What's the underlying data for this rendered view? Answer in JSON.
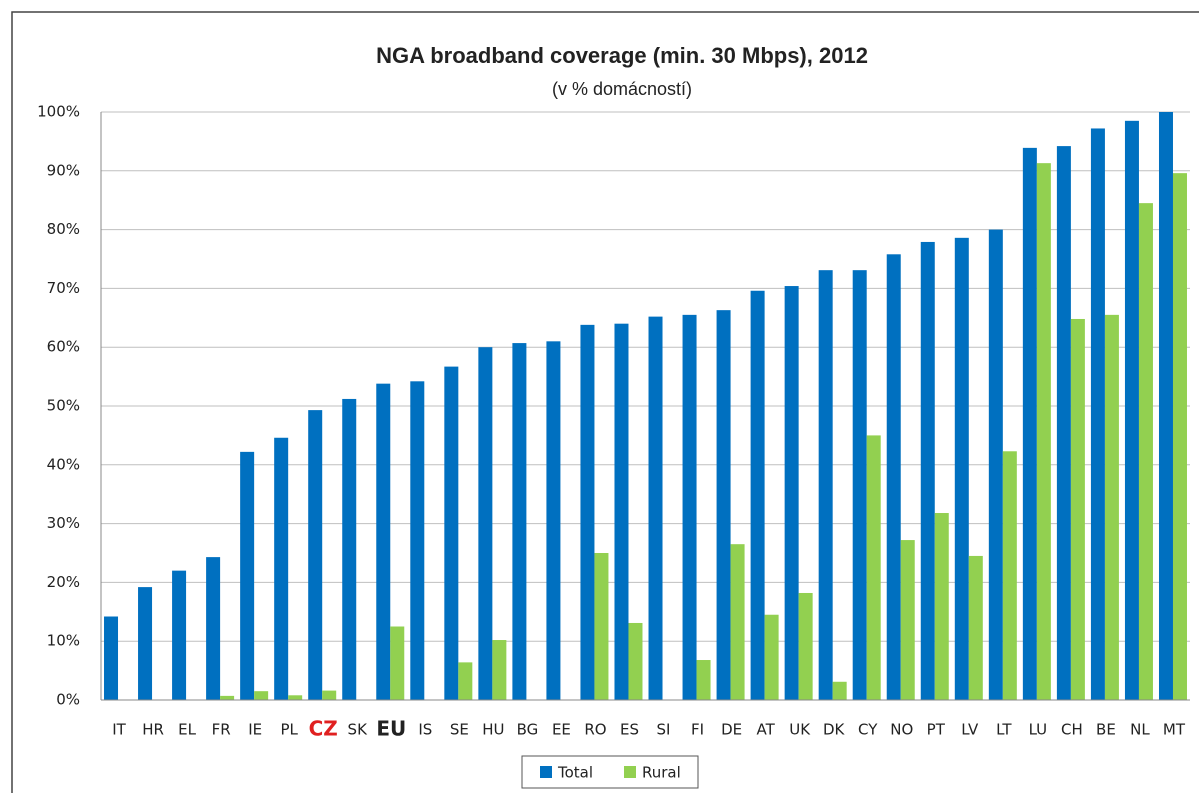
{
  "chart_data": {
    "type": "bar",
    "title": "NGA broadband coverage (min. 30 Mbps), 2012",
    "subtitle": "(v % domácností)",
    "categories": [
      "IT",
      "HR",
      "EL",
      "FR",
      "IE",
      "PL",
      "CZ",
      "SK",
      "EU",
      "IS",
      "SE",
      "HU",
      "BG",
      "EE",
      "RO",
      "ES",
      "SI",
      "FI",
      "DE",
      "AT",
      "UK",
      "DK",
      "CY",
      "NO",
      "PT",
      "LV",
      "LT",
      "LU",
      "CH",
      "BE",
      "NL",
      "MT"
    ],
    "series": [
      {
        "name": "Total",
        "color": "#0070c0",
        "values": [
          14.2,
          19.2,
          22,
          24.3,
          42.2,
          44.6,
          49.3,
          51.2,
          53.8,
          54.2,
          56.7,
          60,
          60.7,
          61,
          63.8,
          64,
          65.2,
          65.5,
          66.3,
          69.6,
          70.4,
          73.1,
          73.1,
          75.8,
          77.9,
          78.6,
          80,
          93.9,
          94.2,
          97.2,
          98.5,
          100
        ]
      },
      {
        "name": "Rural",
        "color": "#92d050",
        "values": [
          null,
          null,
          null,
          0.7,
          1.5,
          0.8,
          1.6,
          null,
          12.5,
          null,
          6.4,
          10.2,
          null,
          null,
          25,
          13.1,
          null,
          6.8,
          26.5,
          14.5,
          18.2,
          3.1,
          45,
          27.2,
          31.8,
          24.5,
          42.3,
          91.3,
          64.8,
          65.5,
          84.5,
          89.6
        ]
      }
    ],
    "ylim": [
      0,
      100
    ],
    "yticks": [
      {
        "value": 0,
        "label": "0%"
      },
      {
        "value": 10,
        "label": "10%"
      },
      {
        "value": 20,
        "label": "20%"
      },
      {
        "value": 30,
        "label": "30%"
      },
      {
        "value": 40,
        "label": "40%"
      },
      {
        "value": 50,
        "label": "50%"
      },
      {
        "value": 60,
        "label": "60%"
      },
      {
        "value": 70,
        "label": "70%"
      },
      {
        "value": 80,
        "label": "80%"
      },
      {
        "value": 90,
        "label": "90%"
      },
      {
        "value": 100,
        "label": "100%"
      }
    ],
    "grid": true,
    "legend": "bottom"
  }
}
